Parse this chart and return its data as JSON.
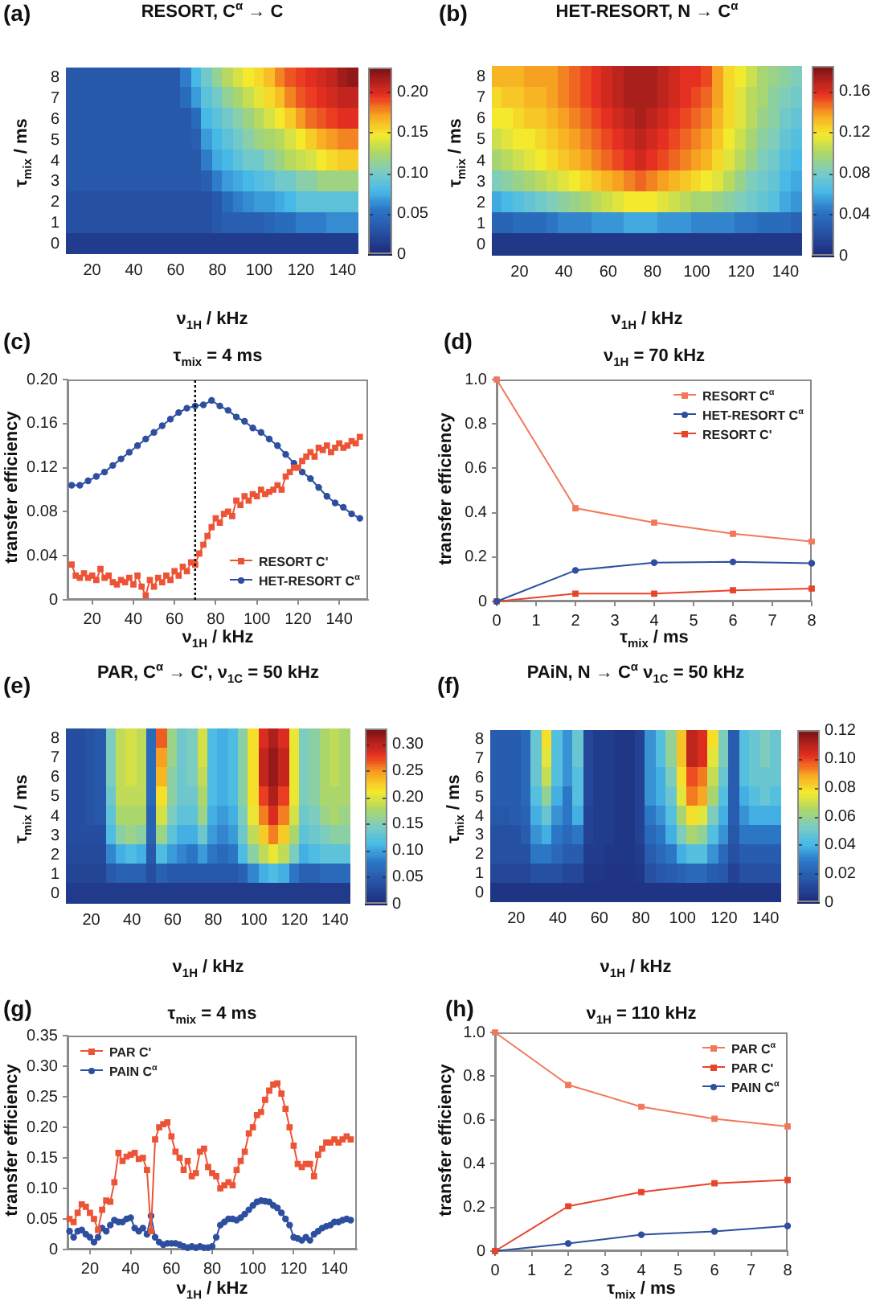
{
  "chart_data": [
    {
      "type": "heatmap",
      "title": "RESORT, C$^{α}$ → C",
      "xlabel": "ν$_{1H}$ / kHz",
      "ylabel": "τ$_{mix}$ / ms",
      "annotations": [
        "(a)"
      ],
      "categories": [
        null,
        null,
        "20",
        null,
        null,
        null,
        "40",
        null,
        null,
        null,
        "60",
        null,
        null,
        null,
        "80",
        null,
        null,
        null,
        "100",
        null,
        null,
        null,
        "120",
        null,
        null,
        null,
        "140",
        null
      ],
      "y_categories": [
        "8",
        "7",
        "6",
        "5",
        "4",
        "3",
        "2",
        "1",
        "0"
      ],
      "clim": [
        0,
        0.23
      ],
      "cticks": [
        0,
        0.05,
        {
          "value": 0.1,
          "label": "0.10"
        },
        0.15,
        {
          "value": 0.2,
          "label": "0.20"
        }
      ],
      "cells": [
        [
          0.035,
          0.035,
          0.035,
          0.035,
          0.035,
          0.035,
          0.035,
          0.035,
          0.035,
          0.035,
          0.035,
          0.06,
          0.08,
          0.1,
          0.115,
          0.13,
          0.14,
          0.15,
          0.155,
          0.165,
          0.18,
          0.19,
          0.195,
          0.2,
          0.205,
          0.21,
          0.22,
          0.225
        ],
        [
          0.035,
          0.035,
          0.035,
          0.035,
          0.035,
          0.035,
          0.035,
          0.035,
          0.035,
          0.035,
          0.035,
          0.05,
          0.07,
          0.09,
          0.1,
          0.115,
          0.125,
          0.135,
          0.145,
          0.155,
          0.165,
          0.18,
          0.19,
          0.195,
          0.2,
          0.205,
          0.21,
          0.21
        ],
        [
          0.035,
          0.035,
          0.035,
          0.035,
          0.035,
          0.035,
          0.035,
          0.035,
          0.035,
          0.035,
          0.035,
          0.035,
          0.05,
          0.08,
          0.09,
          0.1,
          0.11,
          0.12,
          0.13,
          0.14,
          0.15,
          0.16,
          0.175,
          0.185,
          0.19,
          0.195,
          0.2,
          0.2
        ],
        [
          0.035,
          0.035,
          0.035,
          0.035,
          0.035,
          0.035,
          0.035,
          0.035,
          0.035,
          0.035,
          0.035,
          0.035,
          0.04,
          0.07,
          0.08,
          0.09,
          0.1,
          0.11,
          0.12,
          0.125,
          0.13,
          0.14,
          0.15,
          0.16,
          0.17,
          0.175,
          0.18,
          0.18
        ],
        [
          0.035,
          0.035,
          0.035,
          0.035,
          0.035,
          0.035,
          0.035,
          0.035,
          0.035,
          0.035,
          0.035,
          0.035,
          0.035,
          0.06,
          0.075,
          0.08,
          0.09,
          0.1,
          0.1,
          0.11,
          0.12,
          0.13,
          0.135,
          0.14,
          0.15,
          0.155,
          0.16,
          0.16
        ],
        [
          0.035,
          0.035,
          0.035,
          0.035,
          0.035,
          0.035,
          0.035,
          0.035,
          0.035,
          0.035,
          0.035,
          0.035,
          0.035,
          0.04,
          0.06,
          0.07,
          0.075,
          0.08,
          0.085,
          0.09,
          0.1,
          0.1,
          0.11,
          0.11,
          0.12,
          0.12,
          0.12,
          0.12
        ],
        [
          0.03,
          0.03,
          0.03,
          0.03,
          0.03,
          0.03,
          0.03,
          0.03,
          0.03,
          0.03,
          0.03,
          0.03,
          0.03,
          0.03,
          0.035,
          0.05,
          0.06,
          0.065,
          0.07,
          0.07,
          0.075,
          0.08,
          0.09,
          0.09,
          0.09,
          0.09,
          0.09,
          0.09
        ],
        [
          0.03,
          0.03,
          0.03,
          0.03,
          0.03,
          0.03,
          0.03,
          0.03,
          0.03,
          0.03,
          0.03,
          0.03,
          0.03,
          0.03,
          0.035,
          0.04,
          0.04,
          0.04,
          0.04,
          0.045,
          0.05,
          0.05,
          0.06,
          0.06,
          0.06,
          0.065,
          0.065,
          0.065
        ],
        [
          0.015,
          0.015,
          0.015,
          0.015,
          0.015,
          0.015,
          0.015,
          0.015,
          0.015,
          0.015,
          0.015,
          0.015,
          0.015,
          0.015,
          0.015,
          0.015,
          0.015,
          0.015,
          0.015,
          0.015,
          0.015,
          0.015,
          0.015,
          0.015,
          0.015,
          0.015,
          0.015,
          0.015
        ]
      ]
    },
    {
      "type": "heatmap",
      "title": "HET-RESORT, N → C$^{α}$",
      "xlabel": "ν$_{1H}$ / kHz",
      "ylabel": "τ$_{mix}$ / ms",
      "annotations": [
        "(b)"
      ],
      "categories": [
        null,
        null,
        "20",
        null,
        null,
        null,
        "40",
        null,
        null,
        null,
        "60",
        null,
        null,
        null,
        "80",
        null,
        null,
        null,
        "100",
        null,
        null,
        null,
        "120",
        null,
        null,
        null,
        "140",
        null
      ],
      "y_categories": [
        "8",
        "7",
        "6",
        "5",
        "4",
        "3",
        "2",
        "1",
        "0"
      ],
      "clim": [
        0,
        0.185
      ],
      "cticks": [
        0,
        0.04,
        0.08,
        0.12,
        0.16
      ],
      "cells": [
        [
          0.135,
          0.135,
          0.135,
          0.14,
          0.14,
          0.14,
          0.145,
          0.15,
          0.155,
          0.16,
          0.165,
          0.17,
          0.175,
          0.175,
          0.175,
          0.17,
          0.165,
          0.16,
          0.16,
          0.155,
          0.14,
          0.125,
          0.12,
          0.11,
          0.1,
          0.095,
          0.09,
          0.085
        ],
        [
          0.125,
          0.13,
          0.13,
          0.135,
          0.135,
          0.14,
          0.145,
          0.15,
          0.155,
          0.16,
          0.165,
          0.17,
          0.175,
          0.175,
          0.175,
          0.17,
          0.165,
          0.16,
          0.155,
          0.15,
          0.14,
          0.125,
          0.115,
          0.105,
          0.1,
          0.09,
          0.085,
          0.08
        ],
        [
          0.12,
          0.12,
          0.125,
          0.13,
          0.13,
          0.135,
          0.14,
          0.145,
          0.15,
          0.155,
          0.16,
          0.165,
          0.17,
          0.175,
          0.17,
          0.165,
          0.16,
          0.155,
          0.15,
          0.145,
          0.135,
          0.125,
          0.115,
          0.105,
          0.095,
          0.09,
          0.08,
          0.075
        ],
        [
          0.11,
          0.115,
          0.12,
          0.12,
          0.125,
          0.13,
          0.135,
          0.14,
          0.145,
          0.15,
          0.155,
          0.16,
          0.165,
          0.17,
          0.165,
          0.16,
          0.155,
          0.15,
          0.145,
          0.14,
          0.13,
          0.12,
          0.11,
          0.1,
          0.09,
          0.085,
          0.075,
          0.07
        ],
        [
          0.1,
          0.105,
          0.11,
          0.115,
          0.12,
          0.125,
          0.13,
          0.135,
          0.14,
          0.145,
          0.15,
          0.155,
          0.16,
          0.165,
          0.16,
          0.155,
          0.15,
          0.145,
          0.14,
          0.135,
          0.125,
          0.115,
          0.105,
          0.095,
          0.085,
          0.08,
          0.07,
          0.065
        ],
        [
          0.085,
          0.09,
          0.095,
          0.1,
          0.105,
          0.11,
          0.115,
          0.12,
          0.125,
          0.13,
          0.135,
          0.14,
          0.145,
          0.15,
          0.145,
          0.14,
          0.135,
          0.13,
          0.125,
          0.12,
          0.115,
          0.105,
          0.095,
          0.085,
          0.08,
          0.075,
          0.065,
          0.06
        ],
        [
          0.06,
          0.065,
          0.07,
          0.075,
          0.08,
          0.085,
          0.09,
          0.095,
          0.1,
          0.105,
          0.11,
          0.115,
          0.12,
          0.12,
          0.12,
          0.115,
          0.11,
          0.105,
          0.1,
          0.1,
          0.095,
          0.09,
          0.085,
          0.08,
          0.075,
          0.07,
          0.06,
          0.055
        ],
        [
          0.035,
          0.035,
          0.04,
          0.04,
          0.04,
          0.045,
          0.05,
          0.05,
          0.05,
          0.055,
          0.055,
          0.055,
          0.06,
          0.06,
          0.06,
          0.055,
          0.055,
          0.055,
          0.05,
          0.05,
          0.05,
          0.05,
          0.045,
          0.045,
          0.04,
          0.04,
          0.04,
          0.035
        ],
        [
          0.01,
          0.01,
          0.01,
          0.01,
          0.01,
          0.01,
          0.01,
          0.01,
          0.01,
          0.01,
          0.01,
          0.01,
          0.01,
          0.01,
          0.01,
          0.01,
          0.01,
          0.01,
          0.01,
          0.01,
          0.01,
          0.01,
          0.01,
          0.01,
          0.01,
          0.01,
          0.01,
          0.01
        ]
      ]
    },
    {
      "type": "line",
      "title": "τ$_{mix}$ = 4 ms",
      "xlabel": "ν$_{1H}$ / kHz",
      "ylabel": "transfer efficiency",
      "annotations": [
        "(c)"
      ],
      "xlim": [
        8,
        154
      ],
      "xticks": [
        20,
        40,
        60,
        80,
        100,
        120,
        140
      ],
      "ylim": [
        0,
        0.2
      ],
      "yticks": [
        0,
        0.04,
        0.08,
        0.12,
        0.16,
        {
          "value": 0.2,
          "label": "0.20"
        }
      ],
      "legend": "bottom right",
      "ref_lines": [
        {
          "axis": "x",
          "value": 70,
          "line_style": "dotted",
          "color": "#000000"
        }
      ],
      "series": [
        {
          "name": "RESORT C'",
          "color": "#ec5436",
          "marker": "square",
          "x": [
            10,
            12,
            14,
            16,
            18,
            20,
            22,
            24,
            26,
            28,
            30,
            32,
            34,
            36,
            38,
            40,
            42,
            44,
            46,
            48,
            50,
            52,
            54,
            56,
            58,
            60,
            62,
            64,
            66,
            68,
            70,
            72,
            74,
            76,
            78,
            80,
            82,
            84,
            86,
            88,
            90,
            92,
            94,
            96,
            98,
            100,
            102,
            104,
            106,
            108,
            110,
            112,
            114,
            116,
            118,
            120,
            122,
            124,
            126,
            128,
            130,
            132,
            134,
            136,
            138,
            140,
            142,
            144,
            146,
            148,
            150
          ],
          "values": [
            0.032,
            0.022,
            0.02,
            0.024,
            0.02,
            0.022,
            0.018,
            0.028,
            0.02,
            0.022,
            0.016,
            0.014,
            0.018,
            0.016,
            0.02,
            0.014,
            0.022,
            0.012,
            0.004,
            0.018,
            0.012,
            0.02,
            0.016,
            0.022,
            0.018,
            0.026,
            0.022,
            0.03,
            0.026,
            0.034,
            0.032,
            0.042,
            0.05,
            0.058,
            0.066,
            0.074,
            0.07,
            0.078,
            0.08,
            0.076,
            0.09,
            0.086,
            0.094,
            0.09,
            0.096,
            0.094,
            0.1,
            0.096,
            0.098,
            0.1,
            0.104,
            0.1,
            0.112,
            0.116,
            0.12,
            0.12,
            0.126,
            0.13,
            0.134,
            0.13,
            0.138,
            0.136,
            0.14,
            0.134,
            0.138,
            0.142,
            0.138,
            0.14,
            0.144,
            0.142,
            0.148
          ]
        },
        {
          "name": "HET-RESORT C$^{α}$",
          "color": "#2e4f9f",
          "marker": "circle",
          "x": [
            10,
            14,
            18,
            22,
            26,
            30,
            34,
            38,
            42,
            46,
            50,
            54,
            58,
            62,
            66,
            70,
            74,
            78,
            82,
            86,
            90,
            94,
            98,
            102,
            106,
            110,
            114,
            118,
            122,
            126,
            130,
            134,
            138,
            142,
            146,
            150
          ],
          "values": [
            0.104,
            0.104,
            0.108,
            0.112,
            0.116,
            0.122,
            0.128,
            0.134,
            0.14,
            0.146,
            0.152,
            0.158,
            0.164,
            0.17,
            0.174,
            0.176,
            0.177,
            0.181,
            0.176,
            0.172,
            0.166,
            0.162,
            0.156,
            0.152,
            0.146,
            0.14,
            0.132,
            0.124,
            0.116,
            0.11,
            0.102,
            0.094,
            0.088,
            0.084,
            0.078,
            0.074
          ]
        }
      ]
    },
    {
      "type": "line",
      "title": "ν$_{1H}$ = 70 kHz",
      "xlabel": "τ$_{mix}$ / ms",
      "ylabel": "transfer efficiency",
      "annotations": [
        "(d)"
      ],
      "x": [
        0,
        2,
        4,
        6,
        8
      ],
      "xlim": [
        0,
        8
      ],
      "xticks": [
        0,
        1,
        2,
        3,
        4,
        5,
        6,
        7,
        8
      ],
      "ylim": [
        0,
        1
      ],
      "yticks": [
        0,
        0.2,
        0.4,
        0.6,
        0.8,
        {
          "value": 1,
          "label": "1.0"
        }
      ],
      "legend": "top right",
      "series": [
        {
          "name": "RESORT C$^{α}$",
          "color": "#f2785c",
          "marker": "square",
          "values": [
            1,
            0.42,
            0.355,
            0.305,
            0.27
          ]
        },
        {
          "name": "HET-RESORT C$^{α}$",
          "color": "#2e4f9f",
          "marker": "circle",
          "values": [
            0,
            0.14,
            0.175,
            0.178,
            0.172
          ]
        },
        {
          "name": "RESORT C'",
          "color": "#e8442a",
          "marker": "square",
          "values": [
            0,
            0.035,
            0.035,
            0.05,
            0.058
          ]
        }
      ]
    },
    {
      "type": "heatmap",
      "title": "PAR, C$^{α}$ → C', ν$_{1C}$ = 50 kHz",
      "xlabel": "ν$_{1H}$ / kHz",
      "ylabel": "τ$_{mix}$ / ms",
      "annotations": [
        "(e)"
      ],
      "categories": [
        null,
        null,
        "20",
        null,
        null,
        null,
        "40",
        null,
        null,
        null,
        "60",
        null,
        null,
        null,
        "80",
        null,
        null,
        null,
        "100",
        null,
        null,
        null,
        "120",
        null,
        null,
        null,
        "140",
        null
      ],
      "y_categories": [
        "8",
        "7",
        "6",
        "5",
        "4",
        "3",
        "2",
        "1",
        "0"
      ],
      "clim": [
        0,
        0.33
      ],
      "cticks": [
        0,
        0.05,
        {
          "value": 0.1,
          "label": "0.10"
        },
        0.15,
        {
          "value": 0.2,
          "label": "0.20"
        },
        0.25,
        {
          "value": 0.3,
          "label": "0.30"
        }
      ],
      "cells": [
        [
          0.04,
          0.04,
          0.045,
          0.05,
          0.15,
          0.19,
          0.2,
          0.19,
          0.07,
          0.27,
          0.17,
          0.14,
          0.15,
          0.2,
          0.12,
          0.11,
          0.12,
          0.16,
          0.22,
          0.29,
          0.31,
          0.29,
          0.21,
          0.15,
          0.16,
          0.18,
          0.19,
          0.18
        ],
        [
          0.04,
          0.04,
          0.045,
          0.05,
          0.15,
          0.19,
          0.2,
          0.19,
          0.07,
          0.25,
          0.17,
          0.14,
          0.15,
          0.2,
          0.12,
          0.11,
          0.12,
          0.16,
          0.22,
          0.3,
          0.32,
          0.3,
          0.21,
          0.15,
          0.16,
          0.18,
          0.19,
          0.18
        ],
        [
          0.04,
          0.04,
          0.045,
          0.05,
          0.15,
          0.19,
          0.2,
          0.19,
          0.07,
          0.24,
          0.16,
          0.14,
          0.15,
          0.19,
          0.12,
          0.11,
          0.12,
          0.16,
          0.22,
          0.3,
          0.32,
          0.3,
          0.21,
          0.15,
          0.16,
          0.18,
          0.19,
          0.18
        ],
        [
          0.04,
          0.04,
          0.045,
          0.05,
          0.14,
          0.19,
          0.19,
          0.19,
          0.07,
          0.22,
          0.16,
          0.14,
          0.14,
          0.18,
          0.12,
          0.11,
          0.12,
          0.16,
          0.22,
          0.28,
          0.31,
          0.28,
          0.21,
          0.15,
          0.16,
          0.18,
          0.18,
          0.18
        ],
        [
          0.04,
          0.04,
          0.045,
          0.05,
          0.13,
          0.18,
          0.18,
          0.18,
          0.06,
          0.2,
          0.15,
          0.13,
          0.13,
          0.17,
          0.11,
          0.1,
          0.11,
          0.15,
          0.21,
          0.26,
          0.29,
          0.26,
          0.2,
          0.14,
          0.15,
          0.17,
          0.18,
          0.17
        ],
        [
          0.04,
          0.04,
          0.04,
          0.04,
          0.12,
          0.16,
          0.17,
          0.16,
          0.06,
          0.17,
          0.13,
          0.11,
          0.11,
          0.14,
          0.1,
          0.09,
          0.1,
          0.14,
          0.19,
          0.23,
          0.26,
          0.23,
          0.18,
          0.13,
          0.14,
          0.15,
          0.16,
          0.16
        ],
        [
          0.035,
          0.035,
          0.035,
          0.035,
          0.09,
          0.11,
          0.12,
          0.11,
          0.05,
          0.12,
          0.1,
          0.09,
          0.08,
          0.1,
          0.08,
          0.07,
          0.08,
          0.12,
          0.16,
          0.19,
          0.21,
          0.19,
          0.15,
          0.11,
          0.12,
          0.13,
          0.13,
          0.13
        ],
        [
          0.03,
          0.03,
          0.03,
          0.03,
          0.05,
          0.06,
          0.06,
          0.06,
          0.04,
          0.06,
          0.05,
          0.05,
          0.05,
          0.05,
          0.05,
          0.05,
          0.05,
          0.06,
          0.09,
          0.11,
          0.12,
          0.11,
          0.08,
          0.06,
          0.06,
          0.07,
          0.07,
          0.07
        ],
        [
          0.02,
          0.02,
          0.02,
          0.02,
          0.02,
          0.02,
          0.02,
          0.02,
          0.02,
          0.02,
          0.02,
          0.02,
          0.02,
          0.02,
          0.02,
          0.02,
          0.02,
          0.02,
          0.02,
          0.02,
          0.02,
          0.02,
          0.02,
          0.02,
          0.02,
          0.02,
          0.02,
          0.02
        ]
      ]
    },
    {
      "type": "heatmap",
      "title": "PAiN, N → C$^{α}$ ν$_{1C}$ = 50 kHz",
      "xlabel": "ν$_{1H}$ / kHz",
      "ylabel": "τ$_{mix}$ / ms",
      "annotations": [
        "(f)"
      ],
      "categories": [
        null,
        null,
        "20",
        null,
        null,
        null,
        "40",
        null,
        null,
        null,
        "60",
        null,
        null,
        null,
        "80",
        null,
        null,
        null,
        "100",
        null,
        null,
        null,
        "120",
        null,
        null,
        null,
        "140",
        null
      ],
      "y_categories": [
        "8",
        "7",
        "6",
        "5",
        "4",
        "3",
        "2",
        "1",
        "0"
      ],
      "clim": [
        0,
        0.12
      ],
      "cticks": [
        0,
        0.02,
        0.04,
        0.06,
        0.08,
        {
          "value": 0.1,
          "label": "0.10"
        },
        0.12
      ],
      "cells": [
        [
          0.02,
          0.02,
          0.02,
          0.025,
          0.05,
          0.08,
          0.045,
          0.035,
          0.05,
          0.012,
          0.008,
          0.008,
          0.006,
          0.006,
          0.01,
          0.035,
          0.045,
          0.06,
          0.085,
          0.11,
          0.105,
          0.08,
          0.055,
          0.02,
          0.045,
          0.05,
          0.055,
          0.05
        ],
        [
          0.02,
          0.02,
          0.02,
          0.025,
          0.05,
          0.075,
          0.045,
          0.035,
          0.05,
          0.012,
          0.008,
          0.008,
          0.006,
          0.006,
          0.01,
          0.035,
          0.045,
          0.06,
          0.085,
          0.11,
          0.105,
          0.075,
          0.055,
          0.02,
          0.045,
          0.05,
          0.055,
          0.05
        ],
        [
          0.02,
          0.02,
          0.02,
          0.025,
          0.05,
          0.07,
          0.045,
          0.035,
          0.045,
          0.012,
          0.008,
          0.008,
          0.006,
          0.006,
          0.01,
          0.035,
          0.04,
          0.055,
          0.08,
          0.1,
          0.095,
          0.07,
          0.05,
          0.02,
          0.045,
          0.05,
          0.05,
          0.05
        ],
        [
          0.02,
          0.02,
          0.02,
          0.025,
          0.045,
          0.06,
          0.04,
          0.03,
          0.045,
          0.012,
          0.008,
          0.008,
          0.006,
          0.006,
          0.01,
          0.035,
          0.04,
          0.05,
          0.075,
          0.095,
          0.09,
          0.065,
          0.045,
          0.02,
          0.04,
          0.045,
          0.05,
          0.045
        ],
        [
          0.018,
          0.018,
          0.02,
          0.022,
          0.04,
          0.05,
          0.035,
          0.03,
          0.04,
          0.01,
          0.008,
          0.008,
          0.006,
          0.006,
          0.01,
          0.03,
          0.035,
          0.045,
          0.065,
          0.08,
          0.075,
          0.055,
          0.04,
          0.02,
          0.035,
          0.04,
          0.04,
          0.04
        ],
        [
          0.015,
          0.015,
          0.015,
          0.02,
          0.035,
          0.04,
          0.03,
          0.025,
          0.03,
          0.01,
          0.008,
          0.008,
          0.006,
          0.006,
          0.01,
          0.025,
          0.03,
          0.04,
          0.055,
          0.065,
          0.06,
          0.045,
          0.035,
          0.018,
          0.03,
          0.03,
          0.03,
          0.03
        ],
        [
          0.015,
          0.015,
          0.015,
          0.015,
          0.03,
          0.03,
          0.025,
          0.02,
          0.02,
          0.008,
          0.008,
          0.006,
          0.006,
          0.006,
          0.008,
          0.02,
          0.025,
          0.03,
          0.04,
          0.045,
          0.045,
          0.035,
          0.025,
          0.015,
          0.02,
          0.02,
          0.02,
          0.02
        ],
        [
          0.012,
          0.012,
          0.012,
          0.012,
          0.015,
          0.015,
          0.015,
          0.012,
          0.012,
          0.006,
          0.006,
          0.005,
          0.005,
          0.005,
          0.006,
          0.015,
          0.018,
          0.02,
          0.022,
          0.025,
          0.025,
          0.02,
          0.018,
          0.01,
          0.015,
          0.015,
          0.015,
          0.015
        ],
        [
          0.005,
          0.005,
          0.005,
          0.005,
          0.005,
          0.005,
          0.005,
          0.005,
          0.005,
          0.005,
          0.005,
          0.005,
          0.005,
          0.005,
          0.005,
          0.005,
          0.005,
          0.005,
          0.005,
          0.005,
          0.005,
          0.005,
          0.005,
          0.005,
          0.005,
          0.005,
          0.005,
          0.005
        ]
      ]
    },
    {
      "type": "line",
      "title": "τ$_{mix}$ = 4 ms",
      "xlabel": "ν$_{1H}$ / kHz",
      "ylabel": "transfer efficiency",
      "annotations": [
        "(g)"
      ],
      "x": [
        10,
        12,
        14,
        16,
        18,
        20,
        22,
        24,
        26,
        28,
        30,
        32,
        34,
        36,
        38,
        40,
        42,
        44,
        46,
        48,
        50,
        52,
        54,
        56,
        58,
        60,
        62,
        64,
        66,
        68,
        70,
        72,
        74,
        76,
        78,
        80,
        82,
        84,
        86,
        88,
        90,
        92,
        94,
        96,
        98,
        100,
        102,
        104,
        106,
        108,
        110,
        112,
        114,
        116,
        118,
        120,
        122,
        124,
        126,
        128,
        130,
        132,
        134,
        136,
        138,
        140,
        142,
        144,
        146,
        148
      ],
      "xlim": [
        9,
        151
      ],
      "xticks": [
        20,
        40,
        60,
        80,
        100,
        120,
        140
      ],
      "ylim": [
        0,
        0.35
      ],
      "yticks": [
        0,
        0.05,
        {
          "value": 0.1,
          "label": "0.10"
        },
        0.15,
        {
          "value": 0.2,
          "label": "0.20"
        },
        0.25,
        {
          "value": 0.3,
          "label": "0.30"
        },
        0.35
      ],
      "legend": "top left",
      "series": [
        {
          "name": "PAR C'",
          "color": "#ec5436",
          "marker": "square",
          "values": [
            0.05,
            0.045,
            0.06,
            0.074,
            0.07,
            0.06,
            0.05,
            0.032,
            0.065,
            0.08,
            0.078,
            0.11,
            0.158,
            0.145,
            0.152,
            0.155,
            0.158,
            0.148,
            0.15,
            0.13,
            0.03,
            0.18,
            0.2,
            0.205,
            0.208,
            0.185,
            0.16,
            0.15,
            0.13,
            0.145,
            0.12,
            0.125,
            0.16,
            0.165,
            0.135,
            0.125,
            0.12,
            0.1,
            0.105,
            0.11,
            0.105,
            0.13,
            0.145,
            0.16,
            0.19,
            0.2,
            0.22,
            0.225,
            0.245,
            0.26,
            0.27,
            0.272,
            0.255,
            0.23,
            0.2,
            0.17,
            0.14,
            0.135,
            0.14,
            0.14,
            0.12,
            0.155,
            0.165,
            0.175,
            0.175,
            0.18,
            0.175,
            0.18,
            0.185,
            0.18
          ]
        },
        {
          "name": "PAIN C$^{α}$",
          "color": "#2e4f9f",
          "marker": "circle",
          "values": [
            0.03,
            0.02,
            0.03,
            0.032,
            0.025,
            0.02,
            0.012,
            0.02,
            0.035,
            0.03,
            0.04,
            0.048,
            0.045,
            0.045,
            0.05,
            0.052,
            0.035,
            0.03,
            0.035,
            0.025,
            0.055,
            0.02,
            0.012,
            0.008,
            0.01,
            0.01,
            0.01,
            0.008,
            0.005,
            0.003,
            0.005,
            0.003,
            0.005,
            0.003,
            0.003,
            0.005,
            0.02,
            0.04,
            0.045,
            0.05,
            0.05,
            0.048,
            0.052,
            0.058,
            0.065,
            0.072,
            0.078,
            0.08,
            0.079,
            0.078,
            0.072,
            0.068,
            0.06,
            0.05,
            0.04,
            0.02,
            0.018,
            0.015,
            0.02,
            0.015,
            0.025,
            0.03,
            0.035,
            0.038,
            0.04,
            0.045,
            0.045,
            0.048,
            0.05,
            0.048
          ]
        }
      ]
    },
    {
      "type": "line",
      "title": "ν$_{1H}$ = 110 kHz",
      "xlabel": "τ$_{mix}$ / ms",
      "ylabel": "transfer efficiency",
      "annotations": [
        "(h)"
      ],
      "x": [
        0,
        2,
        4,
        6,
        8
      ],
      "xlim": [
        0,
        8
      ],
      "xticks": [
        0,
        1,
        2,
        3,
        4,
        5,
        6,
        7,
        8
      ],
      "ylim": [
        0,
        1
      ],
      "yticks": [
        0,
        0.2,
        0.4,
        0.6,
        0.8,
        {
          "value": 1,
          "label": "1.0"
        }
      ],
      "legend": "top right",
      "series": [
        {
          "name": "PAR C$^{α}$",
          "color": "#f2785c",
          "marker": "square",
          "values": [
            1,
            0.76,
            0.66,
            0.605,
            0.57
          ]
        },
        {
          "name": "PAR C'",
          "color": "#e8442a",
          "marker": "square",
          "values": [
            0,
            0.205,
            0.27,
            0.31,
            0.325
          ]
        },
        {
          "name": "PAIN C$^{α}$",
          "color": "#2e4f9f",
          "marker": "circle",
          "values": [
            0,
            0.035,
            0.075,
            0.09,
            0.115
          ]
        }
      ]
    }
  ]
}
